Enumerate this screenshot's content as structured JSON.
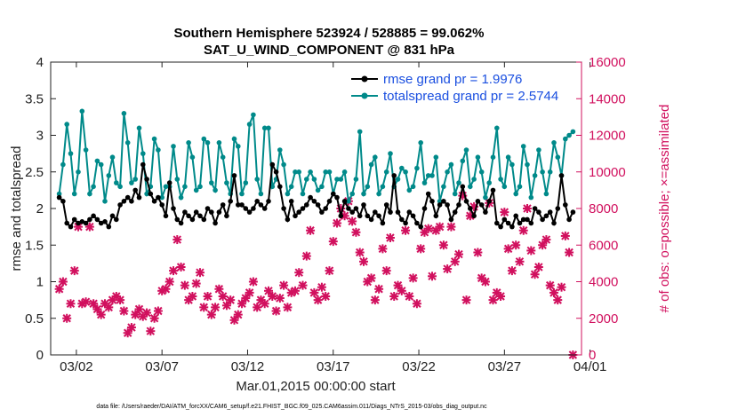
{
  "chart_data": {
    "type": "line",
    "title_line1": "Southern Hemisphere 523924 / 528885 = 99.062%",
    "title_line2": "SAT_U_WIND_COMPONENT @ 831 hPa",
    "xlabel": "Mar.01,2015 00:00:00 start",
    "ylabel_left": "rmse and totalspread",
    "ylabel_right": "# of obs: o=possible; ×=assimilated",
    "xlim": [
      0.5,
      31.5
    ],
    "ylim_left": [
      0,
      4
    ],
    "ylim_right": [
      0,
      16000
    ],
    "x_ticks": [
      {
        "value": 2,
        "label": "03/02"
      },
      {
        "value": 7,
        "label": "03/07"
      },
      {
        "value": 12,
        "label": "03/12"
      },
      {
        "value": 17,
        "label": "03/17"
      },
      {
        "value": 22,
        "label": "03/22"
      },
      {
        "value": 27,
        "label": "03/27"
      },
      {
        "value": 32,
        "label": "04/01"
      }
    ],
    "y_ticks_left": [
      "0",
      "0.5",
      "1",
      "1.5",
      "2",
      "2.5",
      "3",
      "3.5",
      "4"
    ],
    "y_ticks_right": [
      "0",
      "2000",
      "4000",
      "6000",
      "8000",
      "10000",
      "12000",
      "14000",
      "16000"
    ],
    "colors": {
      "rmse": "#000000",
      "spread": "#008a8a",
      "obs": "#d1105e",
      "legend_text": "#1a4fe0",
      "right_axis": "#d1105e"
    },
    "legend_position": "top-right",
    "series": [
      {
        "name": "rmse grand pr = 1.9976",
        "axis": "left",
        "values": [
          2.15,
          2.1,
          1.8,
          1.75,
          1.85,
          1.8,
          1.82,
          1.8,
          1.85,
          1.9,
          1.85,
          1.8,
          1.82,
          1.75,
          1.9,
          1.85,
          2.05,
          2.1,
          2.15,
          2.1,
          2.25,
          2.15,
          2.6,
          2.4,
          2.2,
          2.1,
          2.15,
          2.05,
          1.9,
          2.35,
          2.0,
          1.85,
          1.8,
          1.95,
          1.9,
          1.85,
          1.95,
          1.9,
          1.85,
          2.0,
          1.95,
          1.8,
          1.95,
          2.05,
          1.9,
          2.1,
          2.45,
          2.05,
          2.05,
          2.0,
          1.95,
          2.0,
          2.1,
          2.05,
          2.0,
          2.1,
          2.6,
          2.5,
          2.3,
          2.0,
          1.85,
          2.1,
          1.9,
          1.95,
          2.0,
          2.05,
          2.15,
          2.1,
          2.05,
          1.95,
          2.0,
          2.1,
          2.2,
          2.15,
          1.9,
          2.1,
          2.0,
          1.95,
          2.0,
          1.9,
          2.05,
          1.9,
          1.85,
          1.95,
          1.9,
          1.8,
          2.05,
          1.95,
          2.45,
          1.95,
          1.85,
          1.8,
          1.95,
          1.9,
          1.8,
          1.75,
          2.0,
          2.2,
          2.1,
          1.9,
          2.05,
          2.1,
          2.05,
          1.85,
          1.95,
          2.05,
          2.3,
          2.1,
          2.0,
          1.9,
          2.1,
          2.05,
          1.95,
          2.1,
          2.25,
          1.8,
          1.75,
          1.85,
          1.8,
          1.75,
          1.9,
          1.8,
          1.85,
          1.85,
          1.8,
          2.0,
          1.95,
          1.85,
          1.9,
          1.95,
          1.8,
          2.0,
          2.45,
          2.05,
          1.85,
          1.95
        ]
      },
      {
        "name": "totalspread grand pr = 2.5744",
        "axis": "left",
        "values": [
          2.2,
          2.6,
          3.15,
          2.75,
          2.2,
          2.5,
          3.33,
          2.8,
          2.2,
          2.3,
          2.65,
          2.6,
          2.1,
          2.45,
          2.7,
          2.35,
          2.3,
          3.3,
          2.9,
          2.35,
          2.4,
          3.1,
          2.75,
          2.2,
          2.3,
          2.95,
          2.8,
          2.15,
          2.3,
          2.3,
          2.85,
          2.4,
          2.15,
          2.3,
          2.9,
          2.7,
          2.25,
          2.3,
          2.95,
          2.9,
          2.35,
          2.25,
          2.9,
          2.7,
          2.35,
          2.2,
          2.95,
          2.85,
          2.2,
          2.35,
          3.15,
          3.28,
          2.4,
          2.2,
          3.1,
          3.1,
          2.3,
          2.4,
          2.8,
          2.6,
          2.2,
          2.3,
          2.5,
          2.5,
          2.2,
          2.4,
          2.5,
          2.4,
          2.25,
          2.3,
          2.5,
          2.5,
          2.2,
          2.4,
          2.4,
          2.5,
          2.1,
          2.2,
          2.4,
          3.05,
          2.2,
          2.3,
          2.6,
          2.7,
          2.2,
          2.3,
          2.5,
          2.75,
          2.3,
          2.4,
          2.55,
          2.5,
          2.25,
          2.3,
          2.55,
          2.9,
          2.35,
          2.45,
          2.45,
          2.7,
          2.1,
          2.3,
          2.5,
          2.6,
          2.2,
          2.35,
          2.65,
          2.8,
          2.3,
          2.4,
          2.7,
          2.5,
          2.15,
          2.35,
          2.7,
          3.1,
          2.4,
          2.3,
          2.7,
          2.6,
          2.2,
          2.3,
          2.85,
          2.6,
          2.15,
          2.45,
          2.8,
          2.5,
          2.2,
          2.5,
          2.9,
          2.7,
          2.45,
          2.95,
          3.0,
          3.05
        ]
      }
    ],
    "obs_markers": {
      "name": "assimilated obs",
      "axis": "right",
      "values": [
        3600,
        4000,
        2000,
        2800,
        4600,
        7000,
        2800,
        2900,
        7000,
        2800,
        2500,
        2200,
        2800,
        2600,
        3000,
        3200,
        3000,
        2400,
        1200,
        1500,
        2200,
        2500,
        2100,
        2300,
        1300,
        2000,
        2400,
        3500,
        3600,
        4000,
        4600,
        6300,
        4800,
        3800,
        3000,
        3200,
        3900,
        4500,
        2600,
        3200,
        2200,
        2600,
        3600,
        3200,
        2700,
        3000,
        1900,
        2200,
        2800,
        3100,
        3400,
        4000,
        2600,
        3000,
        2800,
        3500,
        3200,
        2400,
        3100,
        3800,
        2600,
        3400,
        3500,
        4500,
        3800,
        5400,
        6800,
        3400,
        3000,
        3700,
        3200,
        4600,
        6200,
        7200,
        8000,
        7600,
        8400,
        7300,
        6700,
        5600,
        5100,
        4000,
        4200,
        3000,
        3600,
        5800,
        4600,
        6400,
        3200,
        3800,
        3500,
        6800,
        3200,
        4200,
        2800,
        5800,
        6700,
        6900,
        4300,
        6800,
        7000,
        6000,
        4700,
        7000,
        5100,
        5500,
        8700,
        3000,
        7600,
        8100,
        5600,
        4200,
        4000,
        8300,
        3000,
        3400,
        3200,
        7800,
        5800,
        4600,
        6000,
        5100,
        6800,
        8000,
        5700,
        4400,
        4800,
        6000,
        6300,
        3800,
        3400,
        3000,
        3700,
        6500,
        5600,
        0
      ]
    }
  },
  "legend": {
    "rmse_label": "rmse grand pr = 1.9976",
    "spread_label": "totalspread grand pr = 2.5744"
  },
  "footer": {
    "text": "data file: /Users/raeder/DAI/ATM_forcXX/CAM6_setup/f.e21.FHIST_BGC.f09_025.CAM6assim.011/Diags_NTrS_2015-03/obs_diag_output.nc"
  }
}
